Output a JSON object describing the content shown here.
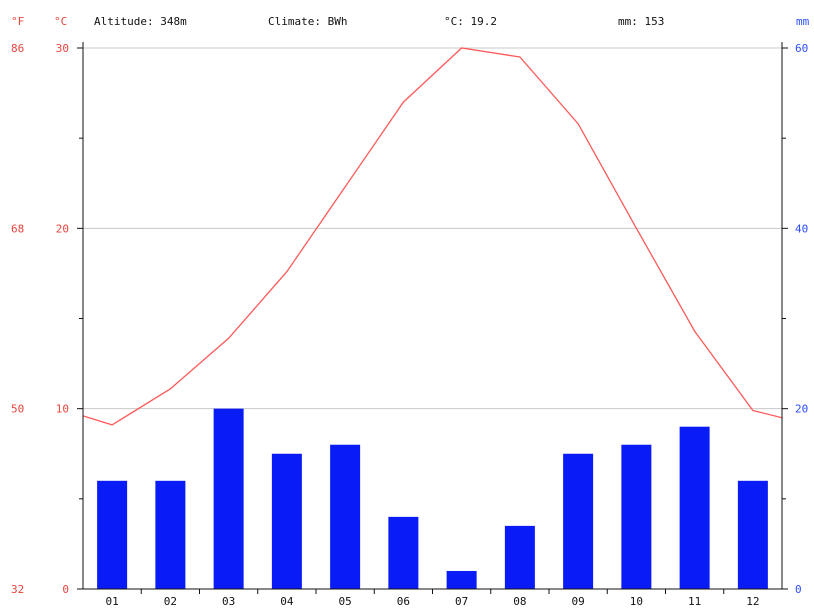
{
  "header": {
    "altitude": "Altitude: 348m",
    "climate": "Climate: BWh",
    "temp_avg": "°C: 19.2",
    "precip_total": "mm: 153"
  },
  "chart_data": {
    "type": "bar",
    "categories": [
      "01",
      "02",
      "03",
      "04",
      "05",
      "06",
      "07",
      "08",
      "09",
      "10",
      "11",
      "12"
    ],
    "axis_units": {
      "fahrenheit": "°F",
      "celsius": "°C",
      "mm": "mm"
    },
    "left_axis_fahrenheit_ticks": [
      "86",
      "68",
      "50",
      "32"
    ],
    "left_axis_celsius_ticks": [
      "30",
      "20",
      "10",
      "0"
    ],
    "right_axis_mm_ticks": [
      "60",
      "40",
      "20",
      "0"
    ],
    "ylim_celsius": [
      0,
      30
    ],
    "ylim_mm": [
      0,
      60
    ],
    "colors": {
      "temperature": "#ff5a5a",
      "precipitation": "#0a1cf5",
      "fahrenheit_axis": "#e8453c",
      "mm_axis": "#2b4dff",
      "grid": "#c8c8c8"
    },
    "grid": true,
    "series": [
      {
        "kind": "line",
        "axis": "celsius",
        "values": [
          9.1,
          11.1,
          13.9,
          17.6,
          22.3,
          27.0,
          30.0,
          29.5,
          25.8,
          20.0,
          14.3,
          9.9
        ],
        "edge_values": [
          9.6,
          9.5
        ]
      },
      {
        "kind": "bar",
        "axis": "mm",
        "values": [
          12,
          12,
          20,
          15,
          16,
          8,
          2,
          7,
          15,
          16,
          18,
          12
        ]
      }
    ]
  }
}
